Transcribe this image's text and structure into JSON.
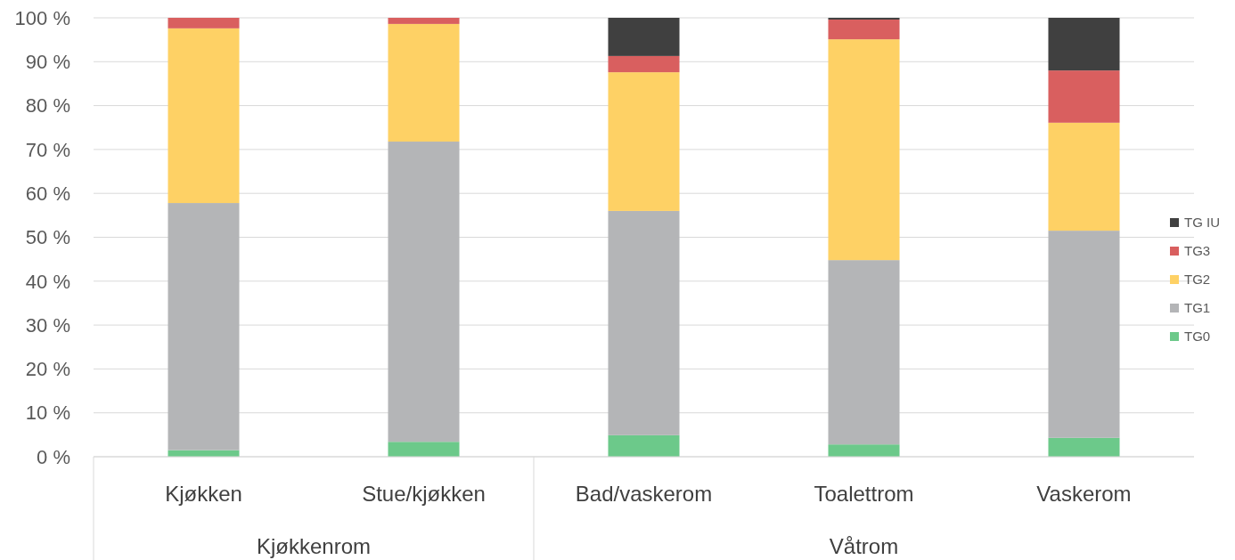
{
  "chart_data": {
    "type": "bar",
    "stacked": true,
    "categories": [
      "Kjøkken",
      "Stue/kjøkken",
      "Bad/vaskerom",
      "Toalettrom",
      "Vaskerom"
    ],
    "series": [
      {
        "name": "TG0",
        "color": "#6cc98a",
        "values": [
          1.5,
          3.4,
          4.9,
          2.8,
          4.3
        ]
      },
      {
        "name": "TG1",
        "color": "#b4b5b7",
        "values": [
          56.3,
          68.4,
          51.1,
          42.0,
          47.2
        ]
      },
      {
        "name": "TG2",
        "color": "#fed165",
        "values": [
          39.8,
          26.8,
          31.6,
          50.3,
          24.6
        ]
      },
      {
        "name": "TG3",
        "color": "#d95f5f",
        "values": [
          2.4,
          1.4,
          3.7,
          4.5,
          11.9
        ]
      },
      {
        "name": "TG IU",
        "color": "#404040",
        "values": [
          0,
          0,
          8.7,
          0.4,
          12.0
        ]
      }
    ],
    "annotations": [
      "Kjøkkenrom",
      "Våtrom"
    ],
    "ylim": [
      0,
      100
    ],
    "yticks": [
      {
        "value": 0,
        "label": "0 %"
      },
      {
        "value": 10,
        "label": "10 %"
      },
      {
        "value": 20,
        "label": "20 %"
      },
      {
        "value": 30,
        "label": "30 %"
      },
      {
        "value": 40,
        "label": "40 %"
      },
      {
        "value": 50,
        "label": "50 %"
      },
      {
        "value": 60,
        "label": "60 %"
      },
      {
        "value": 70,
        "label": "70 %"
      },
      {
        "value": 80,
        "label": "80 %"
      },
      {
        "value": 90,
        "label": "90 %"
      },
      {
        "value": 100,
        "label": "100 %"
      }
    ],
    "grid": "y",
    "legend": "right"
  }
}
